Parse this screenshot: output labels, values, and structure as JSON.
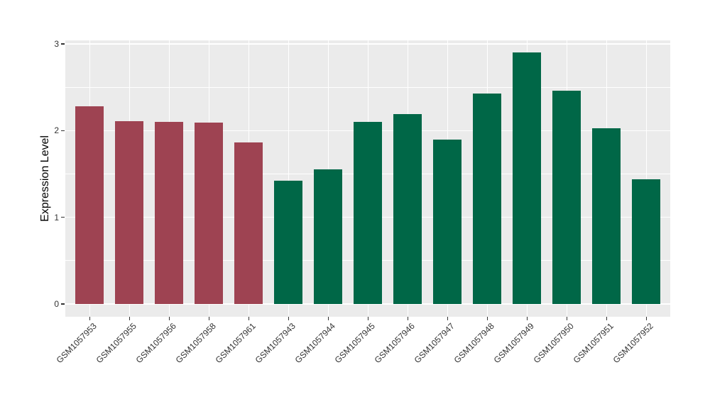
{
  "chart_data": {
    "type": "bar",
    "title": "",
    "xlabel": "",
    "ylabel": "Expression Level",
    "ylim": [
      0,
      3
    ],
    "yticks": [
      0,
      1,
      2,
      3
    ],
    "minor_yticks": [
      0.5,
      1.5,
      2.5
    ],
    "grid": true,
    "legend_position": "none",
    "panel_background": "#EBEBEB",
    "grid_color": "#FFFFFF",
    "tick_label_color": "#333333",
    "group_colors": {
      "maroon": "#9E4352",
      "green": "#006747"
    },
    "categories": [
      "GSM1057953",
      "GSM1057955",
      "GSM1057956",
      "GSM1057958",
      "GSM1057961",
      "GSM1057943",
      "GSM1057944",
      "GSM1057945",
      "GSM1057946",
      "GSM1057947",
      "GSM1057948",
      "GSM1057949",
      "GSM1057950",
      "GSM1057951",
      "GSM1057952"
    ],
    "values": [
      2.28,
      2.11,
      2.1,
      2.09,
      1.86,
      1.42,
      1.55,
      2.1,
      2.19,
      1.9,
      2.43,
      2.9,
      2.46,
      2.03,
      1.44
    ],
    "bar_colors": [
      "#9E4352",
      "#9E4352",
      "#9E4352",
      "#9E4352",
      "#9E4352",
      "#006747",
      "#006747",
      "#006747",
      "#006747",
      "#006747",
      "#006747",
      "#006747",
      "#006747",
      "#006747",
      "#006747"
    ]
  }
}
